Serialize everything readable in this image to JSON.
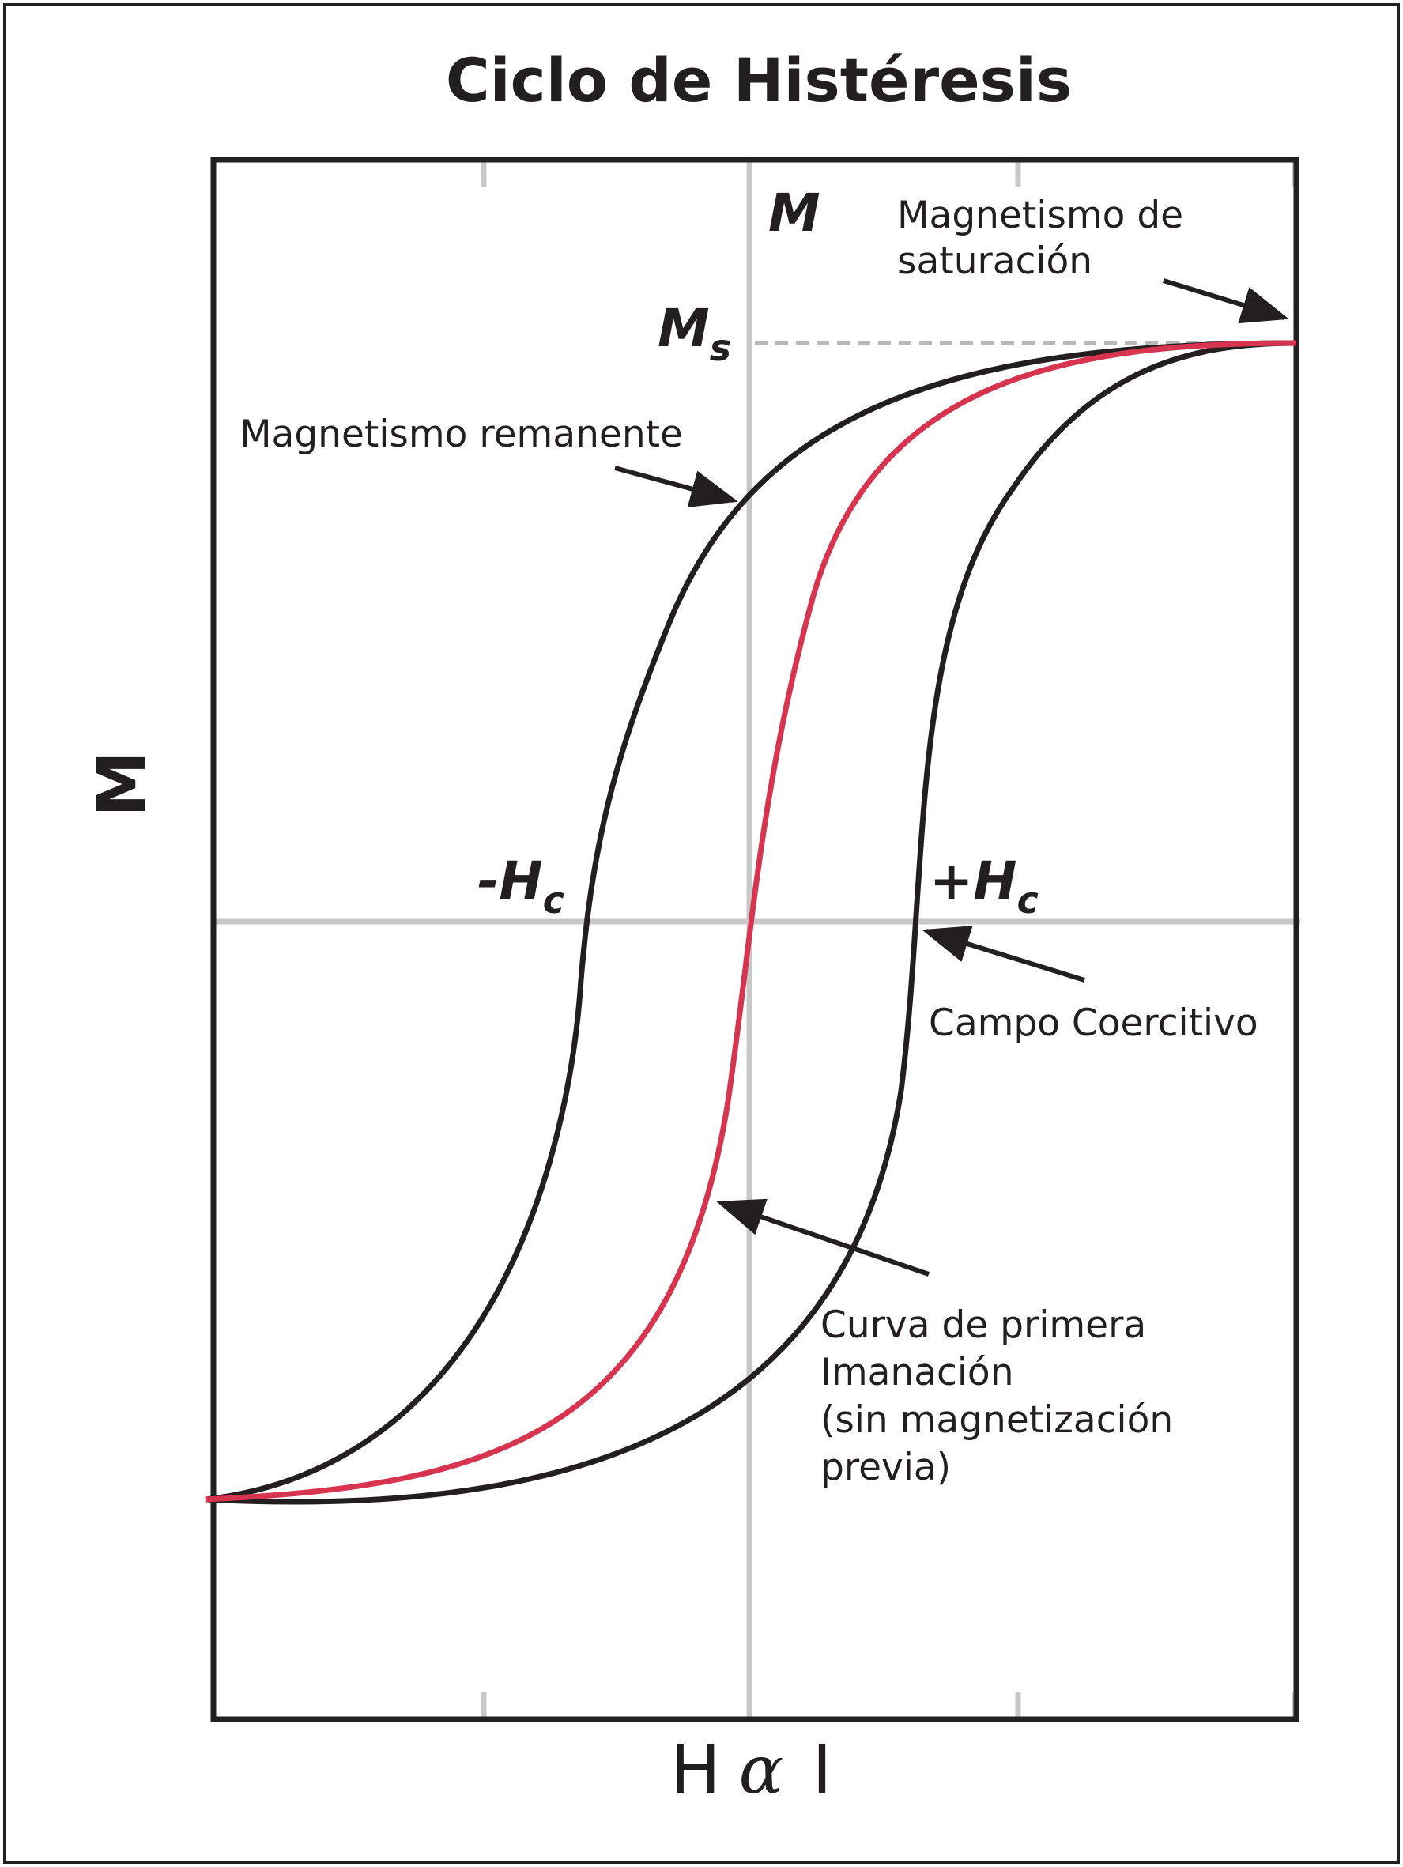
{
  "title": "Ciclo de Histéresis",
  "x_axis_label": {
    "left": "H",
    "symbol": "α",
    "right": "I"
  },
  "y_axis_label": "M",
  "inner_axis_label": "M",
  "saturation_symbol": {
    "base": "M",
    "sub": "s"
  },
  "neg_coercive": {
    "base": "-H",
    "sub": "c"
  },
  "pos_coercive": {
    "base": "+H",
    "sub": "c"
  },
  "annotations": {
    "saturation": [
      "Magnetismo de",
      "saturación"
    ],
    "remanent": [
      "Magnetismo remanente"
    ],
    "coercive": [
      "Campo Coercitivo"
    ],
    "first_magnetization": [
      "Curva de primera",
      "Imanación",
      "(sin magnetización",
      "previa)"
    ]
  },
  "colors": {
    "loop": "#231f20",
    "first_curve": "#d6344f",
    "grid": "#c8c8c8",
    "frame": "#231f20",
    "saturation_guide": "#b8b8b8"
  }
}
